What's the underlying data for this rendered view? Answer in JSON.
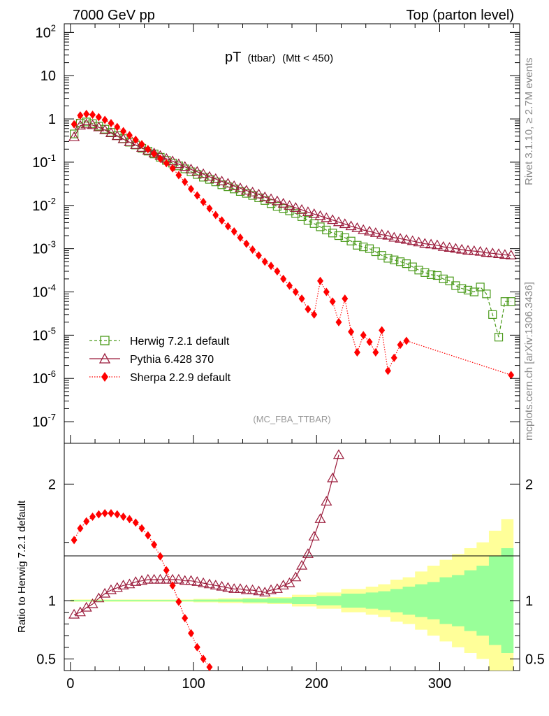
{
  "header": {
    "left": "7000 GeV pp",
    "right": "Top (parton level)"
  },
  "title": {
    "main": "pT",
    "sub": "(ttbar)",
    "cut": "(Mtt < 450)"
  },
  "analysis_tag": "(MC_FBA_TTBAR)",
  "side_text": {
    "rivet": "Rivet 3.1.10, ≥ 2.7M events",
    "mcplots": "mcplots.cern.ch [arXiv:1306.3436]"
  },
  "ratio_ylabel": "Ratio to Herwig 7.2.1 default",
  "colors": {
    "herwig": "#4a9a1a",
    "pythia": "#9a1a3a",
    "sherpa": "#ff0000",
    "band_outer": "#ffff99",
    "band_inner": "#99ff99"
  },
  "legend": [
    {
      "id": "herwig",
      "label": "Herwig 7.2.1 default"
    },
    {
      "id": "pythia",
      "label": "Pythia 6.428 370"
    },
    {
      "id": "sherpa",
      "label": "Sherpa 2.2.9 default"
    }
  ],
  "chart_data": {
    "type": "line",
    "x_ticks": [
      "0",
      "100",
      "200",
      "300"
    ],
    "main_y_ticks": [
      "10^-7",
      "10^-6",
      "10^-5",
      "10^-4",
      "10^-3",
      "10^-2",
      "10^-1",
      "1",
      "10",
      "10^2"
    ],
    "ratio_y_ticks": [
      "0.5",
      "1",
      "2"
    ],
    "xlim": [
      -5,
      365
    ],
    "main_ylim_log10": [
      -7.5,
      2.2
    ],
    "ratio_ylim": [
      0.4,
      2.35
    ],
    "series": [
      {
        "name": "Herwig 7.2.1 default",
        "x": [
          3,
          8,
          13,
          18,
          23,
          28,
          33,
          38,
          43,
          48,
          53,
          58,
          63,
          68,
          73,
          78,
          83,
          88,
          93,
          98,
          103,
          108,
          113,
          118,
          123,
          128,
          133,
          138,
          143,
          148,
          153,
          158,
          163,
          168,
          173,
          178,
          183,
          188,
          193,
          198,
          203,
          208,
          213,
          218,
          223,
          228,
          233,
          238,
          243,
          248,
          253,
          258,
          263,
          268,
          273,
          278,
          283,
          288,
          293,
          298,
          303,
          308,
          313,
          318,
          323,
          328,
          333,
          338,
          343,
          348,
          353,
          358
        ],
        "y": [
          0.45,
          0.8,
          0.85,
          0.78,
          0.68,
          0.58,
          0.49,
          0.41,
          0.35,
          0.29,
          0.25,
          0.21,
          0.18,
          0.155,
          0.13,
          0.11,
          0.095,
          0.082,
          0.07,
          0.06,
          0.052,
          0.045,
          0.04,
          0.035,
          0.03,
          0.027,
          0.024,
          0.021,
          0.019,
          0.017,
          0.015,
          0.013,
          0.011,
          0.0095,
          0.0085,
          0.0075,
          0.0065,
          0.0055,
          0.0045,
          0.0038,
          0.0032,
          0.0027,
          0.0023,
          0.002,
          0.0018,
          0.0015,
          0.0012,
          0.0011,
          0.001,
          0.00085,
          0.0007,
          0.0006,
          0.00055,
          0.0005,
          0.00045,
          0.00038,
          0.00032,
          0.00028,
          0.00025,
          0.00024,
          0.0002,
          0.00018,
          0.00014,
          0.00012,
          0.00011,
          0.0001,
          0.00013,
          9e-05,
          3e-05,
          9e-06,
          6e-05,
          6e-05
        ]
      },
      {
        "name": "Pythia 6.428 370",
        "x": [
          3,
          8,
          13,
          18,
          23,
          28,
          33,
          38,
          43,
          48,
          53,
          58,
          63,
          68,
          73,
          78,
          83,
          88,
          93,
          98,
          103,
          108,
          113,
          118,
          123,
          128,
          133,
          138,
          143,
          148,
          153,
          158,
          163,
          168,
          173,
          178,
          183,
          188,
          193,
          198,
          203,
          208,
          213,
          218,
          223,
          228,
          233,
          238,
          243,
          248,
          253,
          258,
          263,
          268,
          273,
          278,
          283,
          288,
          293,
          298,
          303,
          308,
          313,
          318,
          323,
          328,
          333,
          338,
          343,
          348,
          353,
          358
        ],
        "y": [
          0.38,
          0.7,
          0.75,
          0.72,
          0.64,
          0.55,
          0.47,
          0.4,
          0.34,
          0.29,
          0.25,
          0.215,
          0.185,
          0.16,
          0.14,
          0.12,
          0.105,
          0.09,
          0.078,
          0.068,
          0.06,
          0.053,
          0.046,
          0.041,
          0.036,
          0.032,
          0.028,
          0.025,
          0.022,
          0.02,
          0.018,
          0.0155,
          0.014,
          0.0125,
          0.011,
          0.0098,
          0.0088,
          0.0079,
          0.007,
          0.0063,
          0.0057,
          0.0051,
          0.0046,
          0.0041,
          0.0037,
          0.0033,
          0.003,
          0.0027,
          0.0025,
          0.0023,
          0.0021,
          0.002,
          0.0018,
          0.0017,
          0.0016,
          0.0015,
          0.0014,
          0.0013,
          0.00125,
          0.0012,
          0.0011,
          0.00105,
          0.001,
          0.00095,
          0.0009,
          0.00088,
          0.00085,
          0.0008,
          0.00078,
          0.00075,
          0.00072,
          0.0007
        ]
      },
      {
        "name": "Sherpa 2.2.9 default",
        "x": [
          3,
          8,
          13,
          18,
          23,
          28,
          33,
          38,
          43,
          48,
          53,
          58,
          63,
          68,
          73,
          78,
          83,
          88,
          93,
          98,
          103,
          108,
          113,
          118,
          123,
          128,
          133,
          138,
          143,
          148,
          153,
          158,
          163,
          168,
          173,
          178,
          183,
          188,
          193,
          198,
          203,
          208,
          213,
          218,
          223,
          228,
          233,
          238,
          243,
          248,
          253,
          258,
          263,
          268,
          273,
          358
        ],
        "y": [
          0.75,
          1.2,
          1.3,
          1.25,
          1.1,
          0.95,
          0.8,
          0.65,
          0.52,
          0.42,
          0.33,
          0.26,
          0.2,
          0.155,
          0.12,
          0.095,
          0.072,
          0.05,
          0.035,
          0.024,
          0.017,
          0.012,
          0.0085,
          0.006,
          0.0045,
          0.0033,
          0.0025,
          0.0018,
          0.0013,
          0.00095,
          0.0007,
          0.0005,
          0.0004,
          0.0003,
          0.0002,
          0.00014,
          0.0001,
          7e-05,
          4e-05,
          3e-05,
          0.00018,
          0.0001,
          6e-05,
          2e-05,
          7e-05,
          1.2e-05,
          4e-06,
          1e-05,
          7e-06,
          4e-06,
          1.3e-05,
          1.5e-06,
          3e-06,
          6e-06,
          7.4e-06,
          1.2e-06
        ]
      },
      {
        "name": "Pythia 6.428 370 ratio",
        "x": [
          3,
          8,
          13,
          18,
          23,
          28,
          33,
          38,
          43,
          48,
          53,
          58,
          63,
          68,
          73,
          78,
          83,
          88,
          93,
          98,
          103,
          108,
          113,
          118,
          123,
          128,
          133,
          138,
          143,
          148,
          153,
          158,
          163,
          168,
          173,
          178,
          183,
          188,
          193,
          198,
          203,
          208,
          213,
          218
        ],
        "y": [
          0.88,
          0.9,
          0.94,
          0.97,
          1.02,
          1.06,
          1.09,
          1.11,
          1.13,
          1.14,
          1.16,
          1.17,
          1.18,
          1.18,
          1.18,
          1.18,
          1.18,
          1.18,
          1.17,
          1.17,
          1.16,
          1.15,
          1.14,
          1.13,
          1.12,
          1.11,
          1.1,
          1.1,
          1.09,
          1.09,
          1.08,
          1.07,
          1.09,
          1.1,
          1.13,
          1.15,
          1.2,
          1.3,
          1.4,
          1.55,
          1.7,
          1.85,
          2.05,
          2.25
        ]
      },
      {
        "name": "Sherpa 2.2.9 default ratio",
        "x": [
          3,
          8,
          13,
          18,
          23,
          28,
          33,
          38,
          43,
          48,
          53,
          58,
          63,
          68,
          73,
          78,
          83,
          88,
          93,
          98,
          103,
          108,
          113
        ],
        "y": [
          1.52,
          1.62,
          1.68,
          1.72,
          1.74,
          1.75,
          1.75,
          1.74,
          1.72,
          1.7,
          1.67,
          1.62,
          1.56,
          1.48,
          1.38,
          1.26,
          1.13,
          0.99,
          0.85,
          0.72,
          0.6,
          0.5,
          0.43
        ]
      }
    ],
    "band": {
      "x": [
        0,
        80,
        100,
        120,
        140,
        160,
        180,
        200,
        220,
        240,
        250,
        260,
        270,
        280,
        290,
        300,
        310,
        320,
        330,
        340,
        350,
        360
      ],
      "outer": [
        0.01,
        0.01,
        0.015,
        0.02,
        0.025,
        0.03,
        0.05,
        0.07,
        0.1,
        0.12,
        0.14,
        0.18,
        0.2,
        0.25,
        0.3,
        0.35,
        0.4,
        0.45,
        0.5,
        0.6,
        0.7,
        0.8
      ],
      "inner": [
        0.005,
        0.005,
        0.008,
        0.01,
        0.015,
        0.02,
        0.03,
        0.04,
        0.06,
        0.07,
        0.08,
        0.1,
        0.12,
        0.14,
        0.16,
        0.2,
        0.22,
        0.26,
        0.3,
        0.38,
        0.45,
        0.5
      ]
    }
  }
}
